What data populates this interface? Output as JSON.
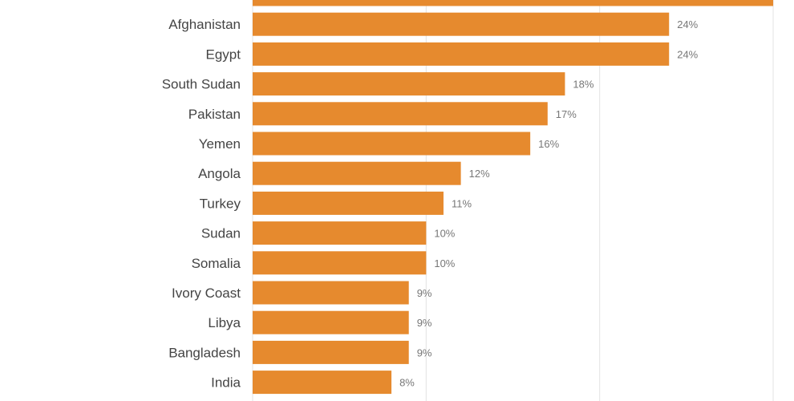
{
  "chart_data": {
    "type": "bar",
    "orientation": "horizontal",
    "categories": [
      "",
      "Afghanistan",
      "Egypt",
      "South Sudan",
      "Pakistan",
      "Yemen",
      "Angola",
      "Turkey",
      "Sudan",
      "Somalia",
      "Ivory Coast",
      "Libya",
      "Bangladesh",
      "India"
    ],
    "values": [
      30,
      24,
      24,
      18,
      17,
      16,
      12,
      11,
      10,
      10,
      9,
      9,
      9,
      8
    ],
    "value_labels": [
      "",
      "24%",
      "24%",
      "18%",
      "17%",
      "16%",
      "12%",
      "11%",
      "10%",
      "10%",
      "9%",
      "9%",
      "9%",
      "8%"
    ],
    "xlim": [
      0,
      31.2
    ],
    "grid": true,
    "bar_color": "#e68a2e"
  }
}
